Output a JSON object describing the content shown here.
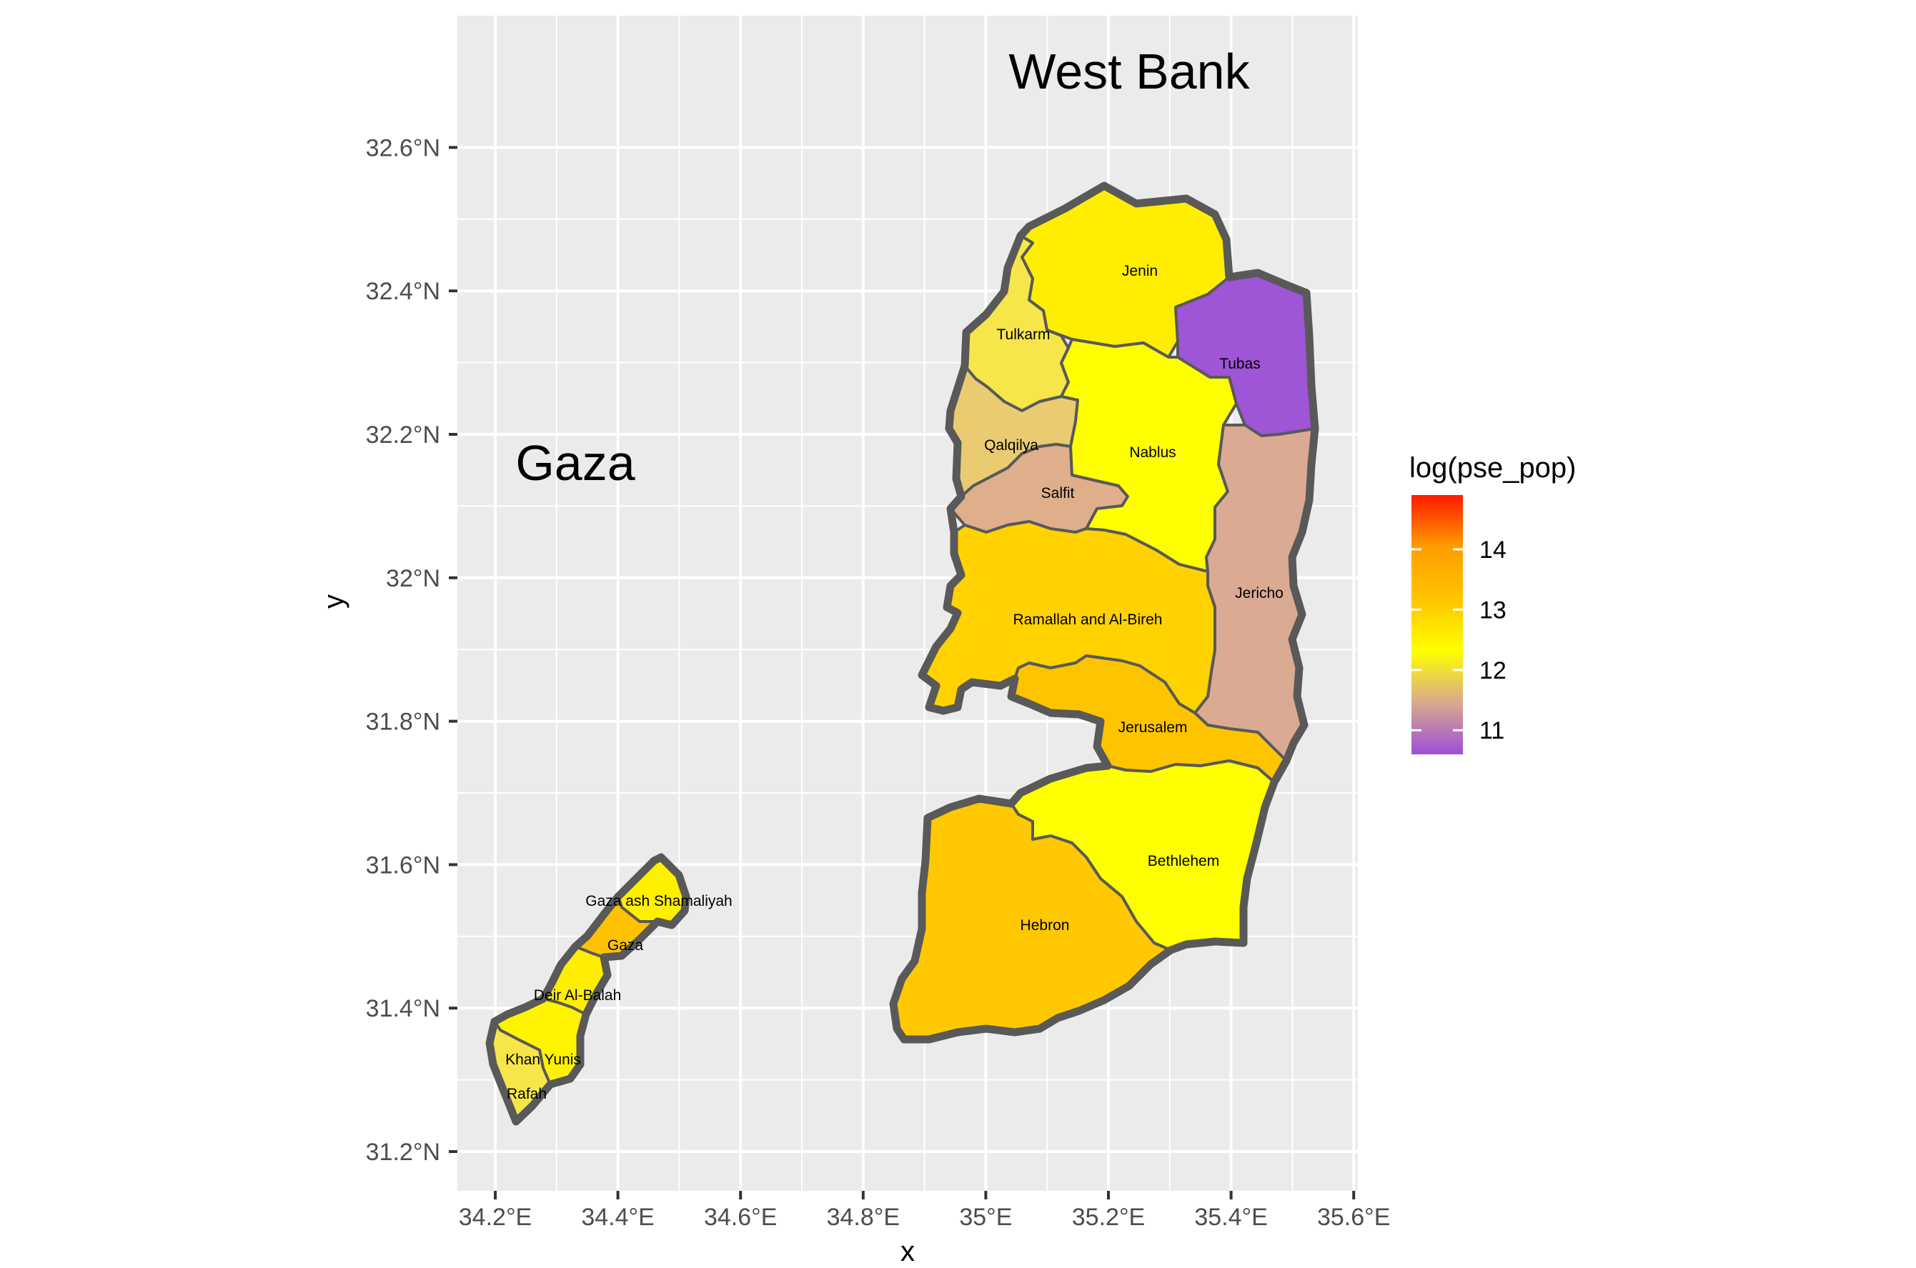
{
  "chart_data": {
    "type": "map",
    "title": "",
    "xlabel": "x",
    "ylabel": "y",
    "xlim": [
      34.16,
      35.65
    ],
    "ylim": [
      31.15,
      32.78
    ],
    "x_ticks": [
      {
        "value": 34.2,
        "label": "34.2°E"
      },
      {
        "value": 34.4,
        "label": "34.4°E"
      },
      {
        "value": 34.6,
        "label": "34.6°E"
      },
      {
        "value": 34.8,
        "label": "34.8°E"
      },
      {
        "value": 35.0,
        "label": "35°E"
      },
      {
        "value": 35.2,
        "label": "35.2°E"
      },
      {
        "value": 35.4,
        "label": "35.4°E"
      },
      {
        "value": 35.6,
        "label": "35.6°E"
      }
    ],
    "y_ticks": [
      {
        "value": 31.2,
        "label": "31.2°N"
      },
      {
        "value": 31.4,
        "label": "31.4°N"
      },
      {
        "value": 31.6,
        "label": "31.6°N"
      },
      {
        "value": 31.8,
        "label": "31.8°N"
      },
      {
        "value": 32.0,
        "label": "32°N"
      },
      {
        "value": 32.2,
        "label": "32.2°N"
      },
      {
        "value": 32.4,
        "label": "32.4°N"
      },
      {
        "value": 32.6,
        "label": "32.6°N"
      }
    ],
    "grid": true,
    "panel_background": "#ebebeb",
    "grid_color": "#ffffff",
    "annotations": [
      {
        "text": "West Bank",
        "x": 35.26,
        "y": 32.69
      },
      {
        "text": "Gaza",
        "x": 34.36,
        "y": 32.15
      }
    ],
    "fill_variable": "log(pse_pop)",
    "legend": {
      "title": "log(pse_pop)",
      "placement": "right",
      "range": [
        10.6,
        14.9
      ],
      "breaks": [
        11,
        12,
        13,
        14
      ],
      "colors": [
        "#9c4fd9",
        "#d9aa8d",
        "#ffff00",
        "#ffc400",
        "#ff9d00",
        "#ff1a00"
      ]
    },
    "regions": [
      {
        "name": "Jenin",
        "label_x": 35.28,
        "label_y": 32.43,
        "value": 12.8,
        "fill": "#ffee00"
      },
      {
        "name": "Tubas",
        "label_x": 35.45,
        "label_y": 32.29,
        "value": 10.9,
        "fill": "#9e55d6"
      },
      {
        "name": "Tulkarm",
        "label_x": 35.09,
        "label_y": 32.33,
        "value": 12.4,
        "fill": "#f6e64a"
      },
      {
        "name": "Qalqilya",
        "label_x": 35.08,
        "label_y": 32.18,
        "value": 11.9,
        "fill": "#ebcb72"
      },
      {
        "name": "Salfit",
        "label_x": 35.15,
        "label_y": 32.12,
        "value": 11.5,
        "fill": "#dfaf8c"
      },
      {
        "name": "Nablus",
        "label_x": 35.31,
        "label_y": 32.17,
        "value": 12.9,
        "fill": "#ffff00"
      },
      {
        "name": "Jericho",
        "label_x": 35.48,
        "label_y": 31.98,
        "value": 11.3,
        "fill": "#dbaa92"
      },
      {
        "name": "Ramallah and Al-Bireh",
        "label_x": 35.2,
        "label_y": 31.93,
        "value": 13.3,
        "fill": "#ffd200"
      },
      {
        "name": "Jerusalem",
        "label_x": 35.31,
        "label_y": 31.79,
        "value": 13.5,
        "fill": "#ffc400"
      },
      {
        "name": "Bethlehem",
        "label_x": 35.36,
        "label_y": 31.6,
        "value": 13.0,
        "fill": "#ffff00"
      },
      {
        "name": "Hebron",
        "label_x": 35.13,
        "label_y": 31.54,
        "value": 13.4,
        "fill": "#ffc800"
      },
      {
        "name": "Gaza ash Shamaliyah",
        "label_x": 34.5,
        "label_y": 31.54,
        "value": 12.9,
        "fill": "#fff000"
      },
      {
        "name": "Gaza",
        "label_x": 34.44,
        "label_y": 31.48,
        "value": 13.4,
        "fill": "#ffc100"
      },
      {
        "name": "Deir Al-Balah",
        "label_x": 34.36,
        "label_y": 31.41,
        "value": 12.8,
        "fill": "#ffee00"
      },
      {
        "name": "Khan Yunis",
        "label_x": 34.29,
        "label_y": 31.32,
        "value": 12.9,
        "fill": "#fff300"
      },
      {
        "name": "Rafah",
        "label_x": 34.27,
        "label_y": 31.27,
        "value": 12.5,
        "fill": "#f6e64a"
      }
    ]
  }
}
